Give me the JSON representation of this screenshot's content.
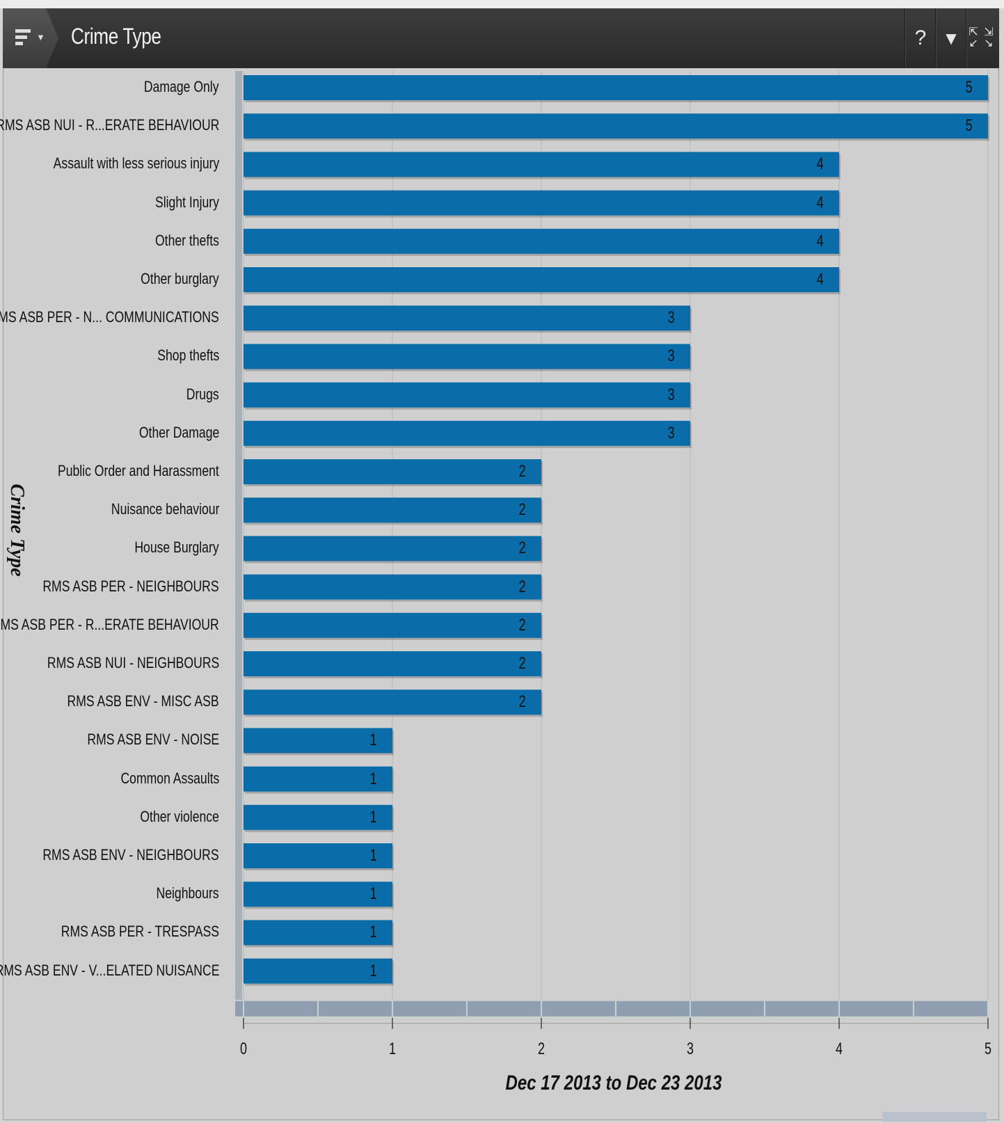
{
  "header": {
    "title": "Crime Type",
    "help_label": "?",
    "filter_label": "▼",
    "maximize_label": "⤡"
  },
  "chart_data": {
    "type": "bar",
    "orientation": "horizontal",
    "title": "Crime Type",
    "xlabel": "Dec 17 2013 to Dec 23 2013",
    "ylabel": "Crime Type",
    "xlim": [
      0,
      5
    ],
    "ticks": [
      0,
      1,
      2,
      3,
      4,
      5
    ],
    "grid": true,
    "bar_color": "#0a6ca8",
    "categories": [
      "Damage Only",
      "RMS ASB NUI - R...ERATE BEHAVIOUR",
      "Assault with less serious injury",
      "Slight Injury",
      "Other thefts",
      "Other burglary",
      "RMS ASB PER - N... COMMUNICATIONS",
      "Shop thefts",
      "Drugs",
      "Other Damage",
      "Public Order and Harassment",
      "Nuisance behaviour",
      "House Burglary",
      "RMS ASB PER - NEIGHBOURS",
      "RMS ASB PER - R...ERATE BEHAVIOUR",
      "RMS ASB NUI - NEIGHBOURS",
      "RMS ASB ENV - MISC ASB",
      "RMS ASB ENV - NOISE",
      "Common Assaults",
      "Other violence",
      "RMS ASB ENV - NEIGHBOURS",
      "Neighbours",
      "RMS ASB PER - TRESPASS",
      "RMS ASB ENV - V...ELATED NUISANCE"
    ],
    "values": [
      5,
      5,
      4,
      4,
      4,
      4,
      3,
      3,
      3,
      3,
      2,
      2,
      2,
      2,
      2,
      2,
      2,
      1,
      1,
      1,
      1,
      1,
      1,
      1
    ]
  }
}
